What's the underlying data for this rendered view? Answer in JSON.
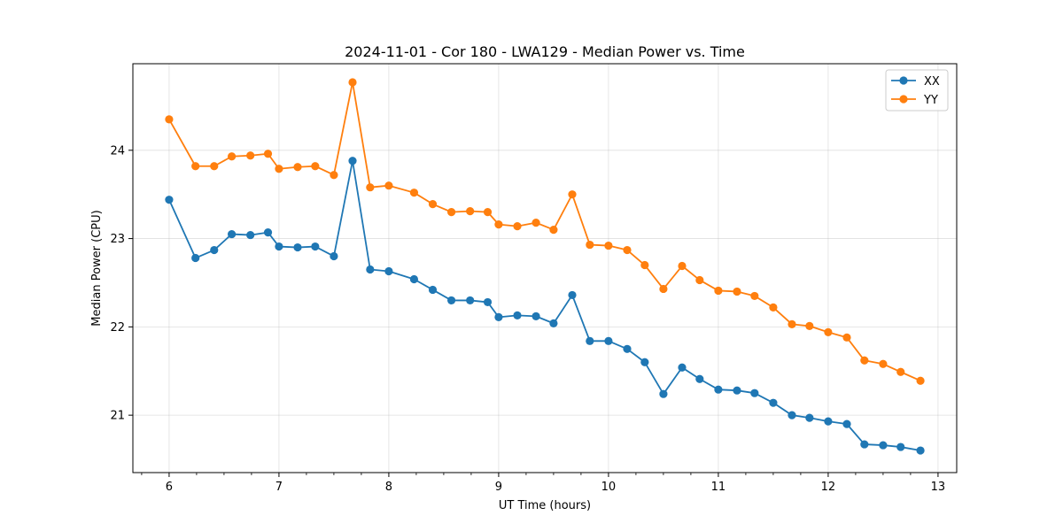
{
  "chart_data": {
    "type": "line",
    "title": "2024-11-01 - Cor 180 - LWA129 - Median Power vs. Time",
    "xlabel": "UT Time (hours)",
    "ylabel": "Median Power (CPU)",
    "xlim": [
      5.67,
      13.17
    ],
    "ylim": [
      20.35,
      24.98
    ],
    "xticks": [
      6,
      7,
      8,
      9,
      10,
      11,
      12,
      13
    ],
    "yticks": [
      21,
      22,
      23,
      24
    ],
    "grid": true,
    "legend_position": "top-right",
    "x": [
      6.0,
      6.24,
      6.41,
      6.57,
      6.74,
      6.9,
      7.0,
      7.17,
      7.33,
      7.5,
      7.67,
      7.83,
      8.0,
      8.23,
      8.4,
      8.57,
      8.74,
      8.9,
      9.0,
      9.17,
      9.34,
      9.5,
      9.67,
      9.83,
      10.0,
      10.17,
      10.33,
      10.5,
      10.67,
      10.83,
      11.0,
      11.17,
      11.33,
      11.5,
      11.67,
      11.83,
      12.0,
      12.17,
      12.33,
      12.5,
      12.66,
      12.84
    ],
    "series": [
      {
        "name": "XX",
        "color": "#1f77b4",
        "values": [
          23.44,
          22.78,
          22.87,
          23.05,
          23.04,
          23.07,
          22.91,
          22.9,
          22.91,
          22.8,
          23.88,
          22.65,
          22.63,
          22.54,
          22.42,
          22.3,
          22.3,
          22.28,
          22.11,
          22.13,
          22.12,
          22.04,
          22.36,
          21.84,
          21.84,
          21.75,
          21.6,
          21.24,
          21.54,
          21.41,
          21.29,
          21.28,
          21.25,
          21.14,
          21.0,
          20.97,
          20.93,
          20.9,
          20.67,
          20.66,
          20.64,
          20.6
        ]
      },
      {
        "name": "YY",
        "color": "#ff7f0e",
        "values": [
          24.35,
          23.82,
          23.82,
          23.93,
          23.94,
          23.96,
          23.79,
          23.81,
          23.82,
          23.72,
          24.77,
          23.58,
          23.6,
          23.52,
          23.39,
          23.3,
          23.31,
          23.3,
          23.16,
          23.14,
          23.18,
          23.1,
          23.5,
          22.93,
          22.92,
          22.87,
          22.7,
          22.43,
          22.69,
          22.53,
          22.41,
          22.4,
          22.35,
          22.22,
          22.03,
          22.01,
          21.94,
          21.88,
          21.62,
          21.58,
          21.49,
          21.39
        ]
      }
    ]
  }
}
